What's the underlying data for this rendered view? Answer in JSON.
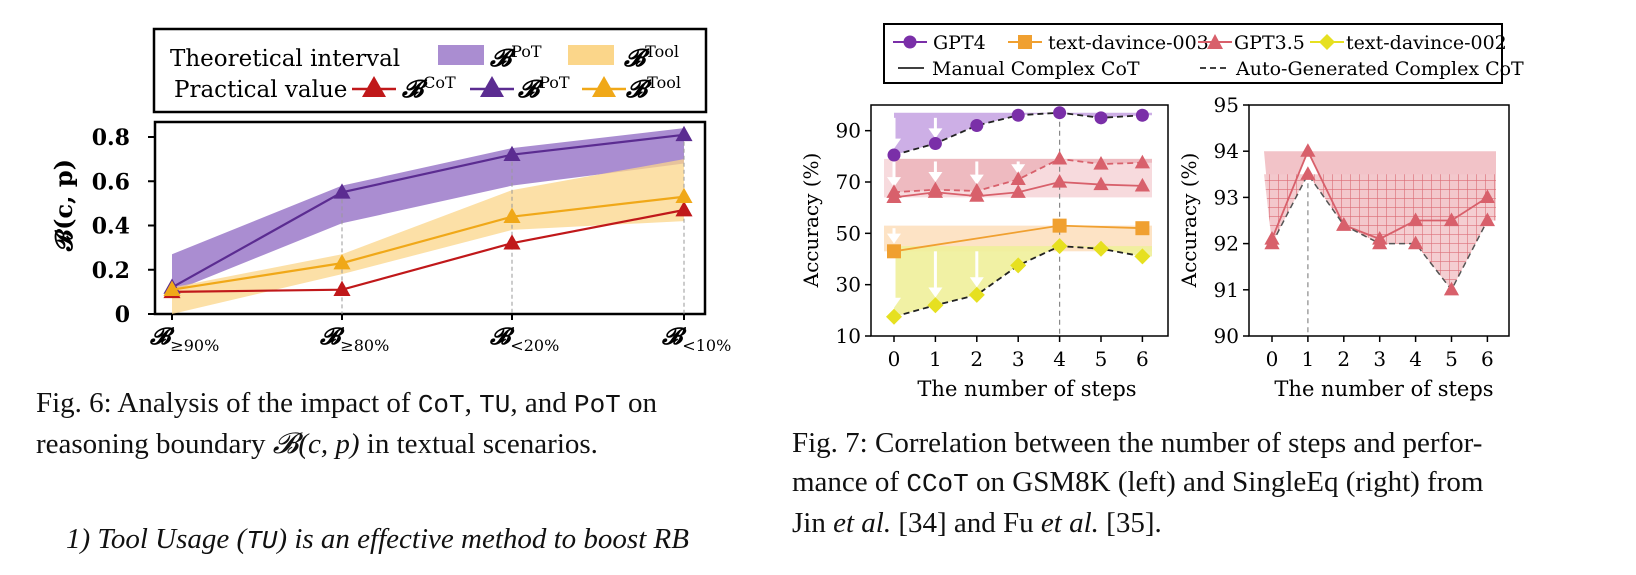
{
  "fig6": {
    "legend": {
      "row1_label": "Theoretical interval",
      "row2_label": "Practical value",
      "items": [
        {
          "sym": "B",
          "sup": "PoT",
          "kind": "band"
        },
        {
          "sym": "B",
          "sup": "Tool",
          "kind": "band"
        },
        {
          "sym": "B",
          "sup": "CoT",
          "kind": "line"
        },
        {
          "sym": "B",
          "sup": "PoT",
          "kind": "line"
        },
        {
          "sym": "B",
          "sup": "Tool",
          "kind": "line"
        }
      ]
    },
    "ylabel": "𝓑(c, p)",
    "yticks": [
      "0",
      "0.2",
      "0.4",
      "0.6",
      "0.8"
    ],
    "xticks": [
      {
        "sym": "𝓑",
        "sub": "≥90%"
      },
      {
        "sym": "𝓑",
        "sub": "≥80%"
      },
      {
        "sym": "𝓑",
        "sub": "<20%"
      },
      {
        "sym": "𝓑",
        "sub": "<10%"
      }
    ],
    "caption": {
      "prefix": "Fig. 6: Analysis of the impact of ",
      "t1": "CoT",
      "s1": ", ",
      "t2": "TU",
      "s2": ", and ",
      "t3": "PoT",
      "s3": " on reasoning boundary ",
      "math": "𝓑(c, p)",
      "suffix": " in textual scenarios."
    }
  },
  "fig7": {
    "legend": {
      "models": [
        "GPT4",
        "text-davince-003",
        "GPT3.5",
        "text-davince-002"
      ],
      "styles": [
        "Manual Complex CoT",
        "Auto-Generated Complex CoT"
      ]
    },
    "left": {
      "ylabel": "Accuracy (%)",
      "xlabel": "The number of steps",
      "yticks": [
        "10",
        "30",
        "50",
        "70",
        "90"
      ],
      "xticks": [
        "0",
        "1",
        "2",
        "3",
        "4",
        "5",
        "6"
      ]
    },
    "right": {
      "ylabel": "Accuracy (%)",
      "xlabel": "The number of steps",
      "yticks": [
        "90",
        "91",
        "92",
        "93",
        "94",
        "95"
      ],
      "xticks": [
        "0",
        "1",
        "2",
        "3",
        "4",
        "5",
        "6"
      ]
    },
    "caption": {
      "line1": "Fig. 7: Correlation between the number of steps and perfor-",
      "l2a": "mance of ",
      "l2t": "CCoT",
      "l2b": " on GSM8K (left) and SingleEq (right) from",
      "l3a": "Jin ",
      "l3i1": "et al.",
      "l3b": " [34] and Fu ",
      "l3i2": "et al.",
      "l3c": " [35]."
    }
  },
  "paragraph": {
    "a": "1) Tool Usage (",
    "t": "TU",
    "b": ") is an effective method to boost RB"
  },
  "colors": {
    "pot": "#5b2c91",
    "pot_band": "#9b79c9",
    "tool": "#f0a818",
    "tool_band": "#fbd68a",
    "cot": "#c0181a",
    "gpt4": "#7a2fa8",
    "davinci003": "#f0a030",
    "gpt35": "#d8606b",
    "davinci002": "#e6e020"
  },
  "chart_data": [
    {
      "type": "line",
      "categories": [
        "𝓑≥90%",
        "𝓑≥80%",
        "𝓑<20%",
        "𝓑<10%"
      ],
      "ylabel": "𝓑(c, p)",
      "ylim": [
        0,
        0.85
      ],
      "series": [
        {
          "name": "𝓑CoT",
          "values": [
            0.1,
            0.11,
            0.32,
            0.47
          ]
        },
        {
          "name": "𝓑PoT",
          "values": [
            0.12,
            0.55,
            0.72,
            0.81
          ]
        },
        {
          "name": "𝓑Tool",
          "values": [
            0.11,
            0.23,
            0.44,
            0.53
          ]
        }
      ],
      "bands": [
        {
          "name": "𝓑PoT",
          "lower": [
            0.1,
            0.41,
            0.58,
            0.68
          ],
          "upper": [
            0.27,
            0.58,
            0.75,
            0.84
          ]
        },
        {
          "name": "𝓑Tool",
          "lower": [
            0.0,
            0.18,
            0.38,
            0.42
          ],
          "upper": [
            0.12,
            0.27,
            0.56,
            0.7
          ]
        }
      ]
    },
    {
      "type": "line",
      "x": [
        0,
        1,
        2,
        3,
        4,
        5,
        6
      ],
      "xlabel": "The number of steps",
      "ylabel": "Accuracy (%)",
      "ylim": [
        10,
        100
      ],
      "series": [
        {
          "name": "GPT4",
          "style": "Auto-Generated Complex CoT",
          "values": [
            80.5,
            85,
            92,
            96,
            97,
            95,
            96
          ]
        },
        {
          "name": "text-davince-003",
          "style": "Manual Complex CoT",
          "x": [
            0,
            4,
            6
          ],
          "values": [
            43,
            53,
            52
          ]
        },
        {
          "name": "GPT3.5",
          "style": "Manual Complex CoT",
          "values": [
            64,
            66,
            64.5,
            66,
            70,
            69,
            68.5
          ]
        },
        {
          "name": "GPT3.5",
          "style": "Auto-Generated Complex CoT",
          "values": [
            66,
            67,
            66.5,
            71,
            79,
            77,
            77.5
          ]
        },
        {
          "name": "text-davince-002",
          "style": "Auto-Generated Complex CoT",
          "values": [
            17.5,
            22,
            26,
            37.5,
            45,
            44,
            41
          ]
        }
      ]
    },
    {
      "type": "line",
      "x": [
        0,
        1,
        2,
        3,
        4,
        5,
        6
      ],
      "xlabel": "The number of steps",
      "ylabel": "Accuracy (%)",
      "ylim": [
        90,
        95
      ],
      "series": [
        {
          "name": "GPT3.5",
          "style": "Manual Complex CoT",
          "values": [
            92.1,
            94.0,
            92.4,
            92.1,
            92.5,
            92.5,
            93.0
          ]
        },
        {
          "name": "GPT3.5",
          "style": "Auto-Generated Complex CoT",
          "values": [
            92.0,
            93.5,
            92.4,
            92.0,
            92.0,
            91.0,
            92.5
          ]
        }
      ]
    }
  ]
}
